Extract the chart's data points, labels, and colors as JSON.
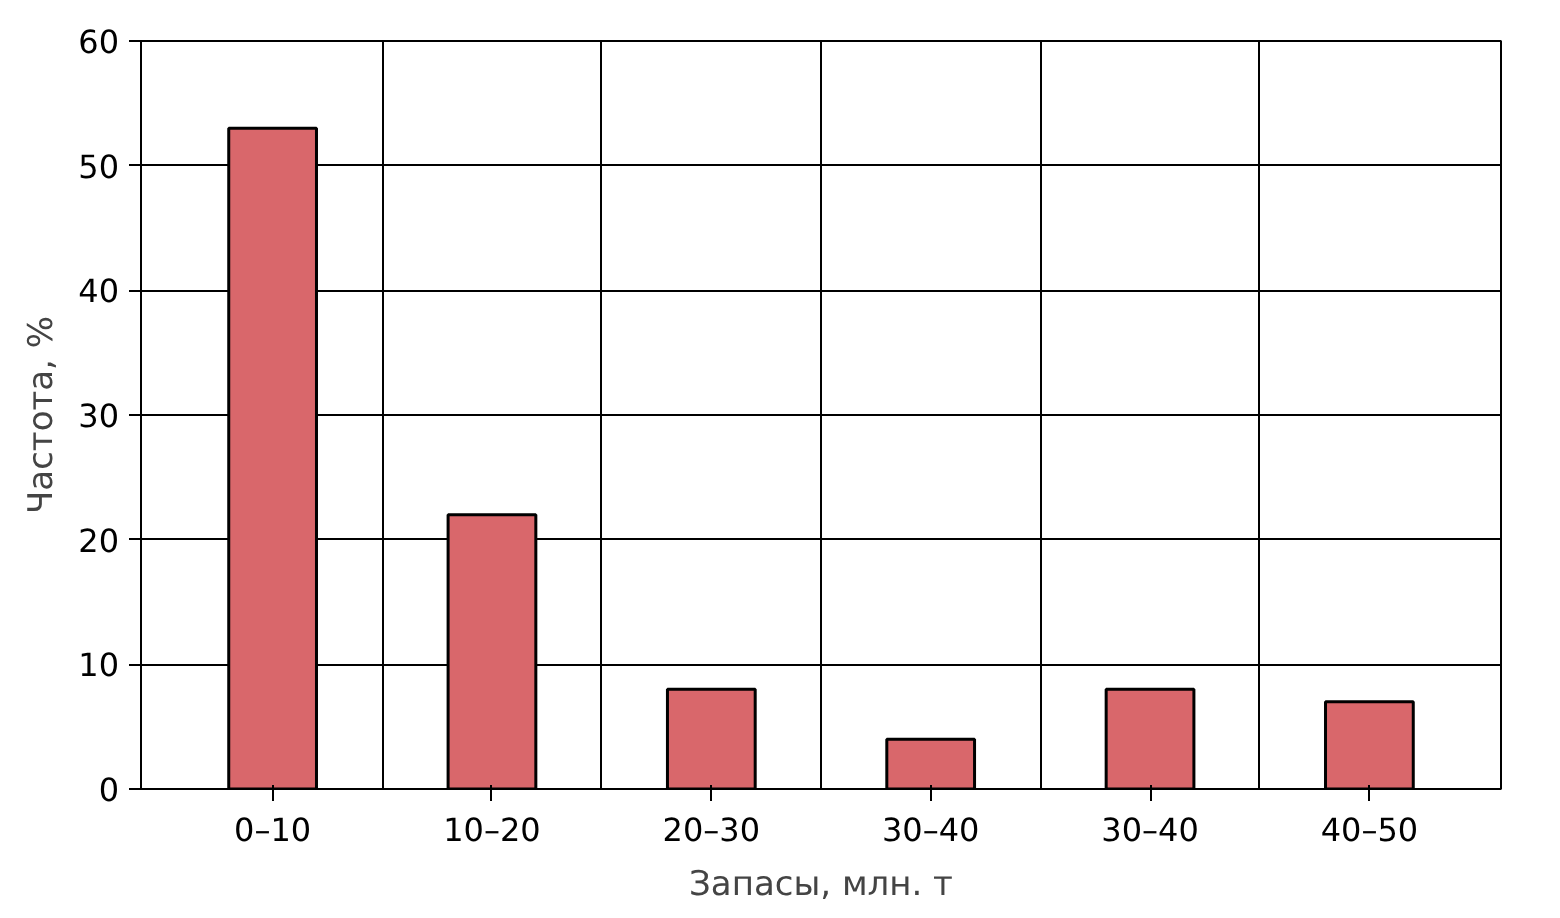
{
  "chart_data": {
    "type": "bar",
    "xlabel": "Запасы, млн. т",
    "ylabel": "Частота, %",
    "categories": [
      "0–10",
      "10–20",
      "20–30",
      "30–40",
      "30–40",
      "40–50"
    ],
    "values": [
      53,
      22,
      8,
      4,
      8,
      7
    ],
    "color": "#d9676b",
    "ylim": [
      0,
      60
    ],
    "yticks": [
      0,
      10,
      20,
      30,
      40,
      50,
      60
    ],
    "grid": true
  }
}
